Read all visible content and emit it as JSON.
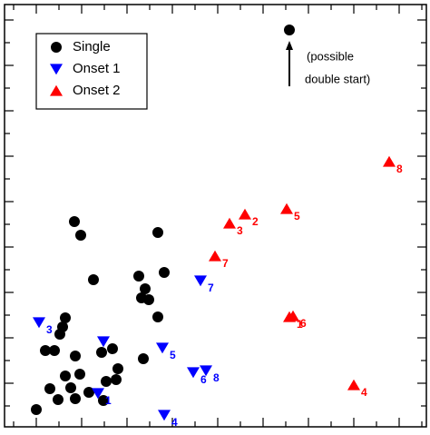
{
  "chart_data": {
    "type": "scatter",
    "xlim": [
      0,
      474
    ],
    "ylim": [
      0,
      474
    ],
    "xticks": [
      15,
      40,
      65,
      90,
      115,
      140,
      165,
      190,
      215,
      240,
      265,
      290,
      315,
      340,
      365,
      390,
      415,
      440,
      465
    ],
    "yticks": [
      27,
      52,
      77,
      102,
      127,
      152,
      177,
      202,
      227,
      252,
      277,
      302,
      327,
      352,
      377,
      402,
      427,
      452
    ],
    "legend": "upper left",
    "series": [
      {
        "name": "Single",
        "color": "#000000",
        "marker": "circle",
        "x": [
          82,
          89,
          174,
          103,
          153,
          181,
          160,
          156,
          164,
          72,
          69,
          174,
          66,
          50,
          60,
          83,
          112,
          124,
          158,
          72,
          88,
          130,
          128,
          117,
          55,
          78,
          83,
          64,
          98,
          114,
          40
        ],
        "values": [
          230,
          215,
          218,
          166,
          170,
          174,
          156,
          146,
          144,
          124,
          114,
          125,
          106,
          88,
          88,
          82,
          86,
          90,
          79,
          60,
          62,
          68,
          56,
          54,
          46,
          47,
          35,
          34,
          42,
          33,
          23
        ]
      },
      {
        "name": "Onset 1",
        "color": "#0000ff",
        "marker": "triangle-down",
        "x": [
          43,
          114,
          179,
          221,
          213,
          227,
          108,
          181
        ],
        "values": [
          119,
          98,
          91,
          165,
          64,
          66,
          41,
          17
        ],
        "labels": [
          "3",
          null,
          "5",
          "7",
          "6",
          "8",
          "1",
          "4"
        ]
      },
      {
        "name": "Onset 2",
        "color": "#ff0000",
        "marker": "triangle-up",
        "x": [
          253,
          270,
          316,
          237,
          319,
          323,
          429,
          390
        ],
        "values": [
          228,
          238,
          244,
          192,
          125,
          126,
          296,
          50
        ],
        "labels": [
          "3",
          "2",
          "5",
          "7",
          "1",
          "6",
          "8",
          "4"
        ]
      }
    ],
    "annotation": {
      "x": 319,
      "y": 441,
      "lines": [
        "(possible",
        "double start)"
      ]
    }
  }
}
